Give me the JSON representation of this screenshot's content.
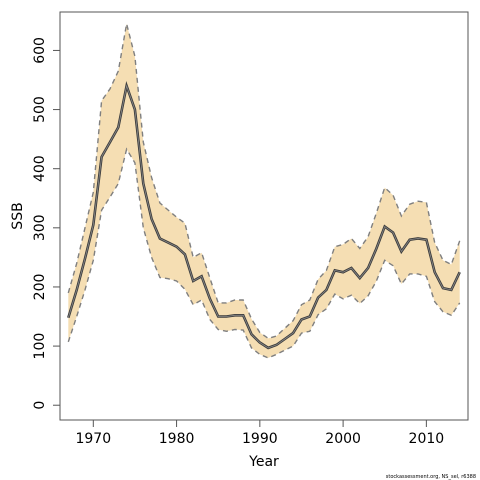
{
  "chart_data": {
    "type": "line",
    "xlabel": "Year",
    "ylabel": "SSB",
    "xlim": [
      1966,
      2015
    ],
    "ylim": [
      -25,
      665
    ],
    "x_ticks": [
      1970,
      1980,
      1990,
      2000,
      2010
    ],
    "y_ticks": [
      0,
      100,
      200,
      300,
      400,
      500,
      600
    ],
    "grid": false,
    "legend": "none",
    "source_note": "stockassessment.org, NS_sel, r6388",
    "colors": {
      "band": "#f5deb3",
      "line": "#3d3d3d",
      "bound": "#7f7f7f",
      "frame": "#555555"
    },
    "x": [
      1967,
      1968,
      1969,
      1970,
      1971,
      1972,
      1973,
      1974,
      1975,
      1976,
      1977,
      1978,
      1979,
      1980,
      1981,
      1982,
      1983,
      1984,
      1985,
      1986,
      1987,
      1988,
      1989,
      1990,
      1991,
      1992,
      1993,
      1994,
      1995,
      1996,
      1997,
      1998,
      1999,
      2000,
      2001,
      2002,
      2003,
      2004,
      2005,
      2006,
      2007,
      2008,
      2009,
      2010,
      2011,
      2012,
      2013,
      2014
    ],
    "series": [
      {
        "name": "estimate",
        "values": [
          148,
          195,
          248,
          305,
          420,
          445,
          470,
          540,
          500,
          375,
          315,
          282,
          275,
          268,
          255,
          210,
          218,
          180,
          150,
          150,
          152,
          152,
          120,
          106,
          97,
          102,
          112,
          122,
          145,
          150,
          182,
          195,
          228,
          225,
          232,
          215,
          232,
          265,
          302,
          292,
          260,
          280,
          282,
          280,
          225,
          198,
          195,
          225
        ]
      },
      {
        "name": "upper",
        "values": [
          190,
          240,
          300,
          360,
          515,
          535,
          565,
          645,
          590,
          445,
          385,
          342,
          330,
          318,
          308,
          250,
          258,
          215,
          173,
          173,
          178,
          178,
          146,
          123,
          113,
          117,
          130,
          143,
          170,
          178,
          213,
          228,
          268,
          272,
          282,
          265,
          285,
          325,
          368,
          355,
          320,
          340,
          345,
          343,
          275,
          245,
          238,
          278
        ]
      },
      {
        "name": "lower",
        "values": [
          107,
          150,
          195,
          245,
          330,
          352,
          375,
          433,
          410,
          300,
          250,
          216,
          214,
          210,
          196,
          170,
          178,
          145,
          128,
          125,
          128,
          127,
          97,
          86,
          80,
          86,
          93,
          100,
          122,
          125,
          153,
          163,
          188,
          180,
          186,
          172,
          185,
          210,
          245,
          236,
          205,
          222,
          222,
          218,
          175,
          158,
          152,
          173
        ]
      }
    ]
  }
}
